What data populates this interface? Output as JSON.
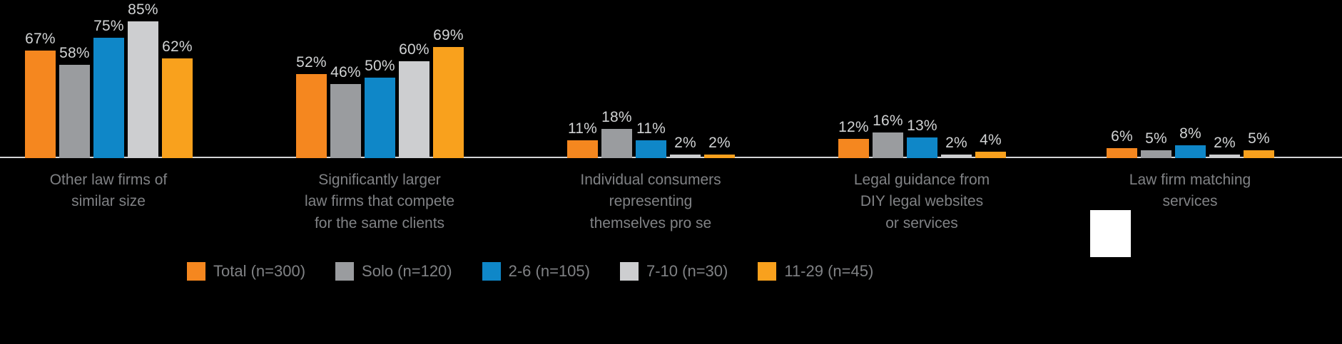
{
  "chart_data": {
    "type": "bar",
    "title": "",
    "xlabel": "",
    "ylabel": "",
    "ylim": [
      0,
      100
    ],
    "grid": false,
    "legend_position": "bottom",
    "value_label_format": "percent",
    "categories": [
      "Other law firms of\nsimilar size",
      "Significantly larger\nlaw firms that compete\nfor the same clients",
      "Individual consumers\nrepresenting\nthemselves pro se",
      "Legal guidance from\nDIY legal websites\nor services",
      "Law firm matching\nservices"
    ],
    "series": [
      {
        "name": "Total (n=300)",
        "color": "#f5871f",
        "values": [
          67,
          52,
          11,
          12,
          6
        ]
      },
      {
        "name": "Solo (n=120)",
        "color": "#9a9c9f",
        "values": [
          58,
          46,
          18,
          16,
          5
        ]
      },
      {
        "name": "2-6 (n=105)",
        "color": "#0f87c8",
        "values": [
          75,
          50,
          11,
          13,
          8
        ]
      },
      {
        "name": "7-10 (n=30)",
        "color": "#cdced0",
        "values": [
          85,
          60,
          2,
          2,
          2
        ]
      },
      {
        "name": "11-29 (n=45)",
        "color": "#f9a11d",
        "values": [
          62,
          69,
          2,
          4,
          5
        ]
      }
    ]
  },
  "colors": {
    "background": "#000000",
    "axis_line": "#d4d5d6",
    "value_label": "#d1d3d4",
    "category_label": "#808285",
    "legend_label": "#808285"
  }
}
